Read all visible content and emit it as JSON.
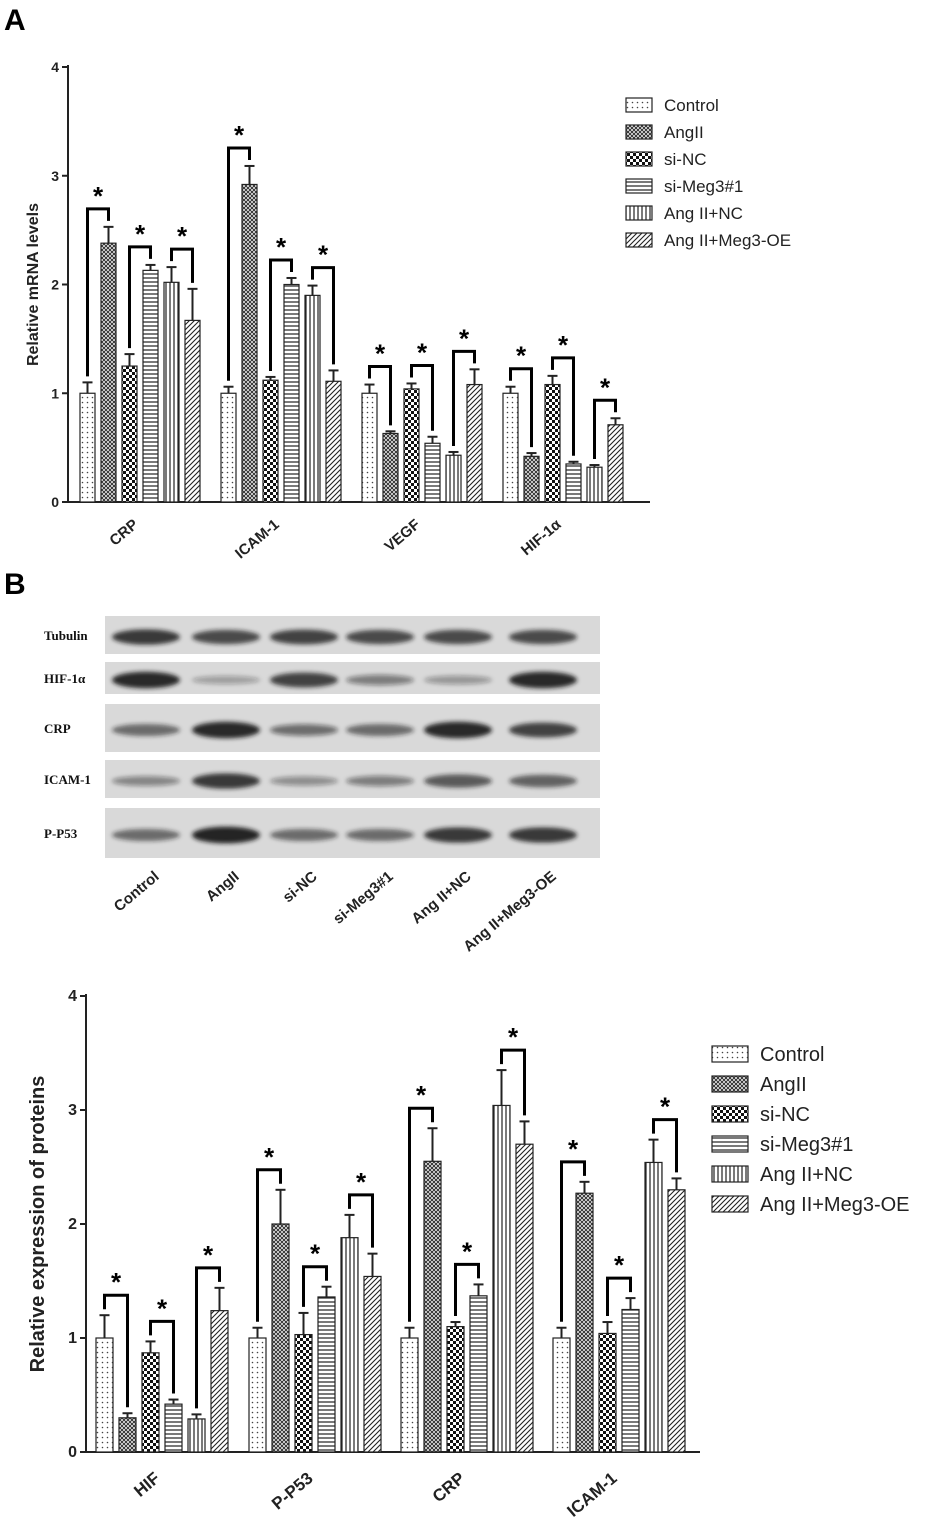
{
  "panel_a_letter": "A",
  "panel_b_letter": "B",
  "colors": {
    "ink": "#222222",
    "blot_bg": "#d9d9d9",
    "band": "#1a1a1a"
  },
  "legend": [
    "Control",
    "AngII",
    "si-NC",
    "si-Meg3#1",
    "Ang II+NC",
    "Ang II+Meg3-OE"
  ],
  "pattern_names": [
    "dots",
    "crosshatch",
    "checker",
    "h-lines",
    "v-lines",
    "diagonal"
  ],
  "significance_symbol": "*",
  "blot": {
    "rows": [
      {
        "label": "Tubulin",
        "intensity": [
          0.85,
          0.75,
          0.8,
          0.75,
          0.75,
          0.75
        ]
      },
      {
        "label": "HIF-1α",
        "intensity": [
          0.95,
          0.2,
          0.8,
          0.4,
          0.25,
          0.95
        ]
      },
      {
        "label": "CRP",
        "intensity": [
          0.55,
          0.95,
          0.5,
          0.55,
          0.95,
          0.8
        ]
      },
      {
        "label": "ICAM-1",
        "intensity": [
          0.35,
          0.85,
          0.3,
          0.4,
          0.65,
          0.6
        ]
      },
      {
        "label": "P-P53",
        "intensity": [
          0.55,
          0.98,
          0.55,
          0.55,
          0.85,
          0.85
        ]
      }
    ],
    "lanes": [
      "Control",
      "AngII",
      "si-NC",
      "si-Meg3#1",
      "Ang II+NC",
      "Ang II+Meg3-OE"
    ]
  },
  "chart_data": [
    {
      "type": "bar",
      "title": "",
      "xlabel": "",
      "ylabel": "Relative mRNA levels",
      "ylim": [
        0,
        4
      ],
      "yticks": [
        0,
        1,
        2,
        3,
        4
      ],
      "categories": [
        "CRP",
        "ICAM-1",
        "VEGF",
        "HIF-1α"
      ],
      "legend_position": "top-right",
      "series": [
        {
          "name": "Control",
          "values": [
            1.0,
            1.0,
            1.0,
            1.0
          ],
          "errors": [
            0.1,
            0.06,
            0.08,
            0.06
          ]
        },
        {
          "name": "AngII",
          "values": [
            2.38,
            2.92,
            0.63,
            0.42
          ],
          "errors": [
            0.15,
            0.17,
            0.02,
            0.03
          ]
        },
        {
          "name": "si-NC",
          "values": [
            1.25,
            1.12,
            1.04,
            1.08
          ],
          "errors": [
            0.11,
            0.03,
            0.05,
            0.08
          ]
        },
        {
          "name": "si-Meg3#1",
          "values": [
            2.13,
            2.0,
            0.54,
            0.35
          ],
          "errors": [
            0.05,
            0.06,
            0.06,
            0.02
          ]
        },
        {
          "name": "Ang II+NC",
          "values": [
            2.02,
            1.9,
            0.43,
            0.32
          ],
          "errors": [
            0.14,
            0.09,
            0.03,
            0.02
          ]
        },
        {
          "name": "Ang II+Meg3-OE",
          "values": [
            1.67,
            1.11,
            1.08,
            0.71
          ],
          "errors": [
            0.29,
            0.1,
            0.14,
            0.06
          ]
        }
      ],
      "significance": [
        {
          "category": 0,
          "from": 0,
          "to": 1
        },
        {
          "category": 0,
          "from": 2,
          "to": 3
        },
        {
          "category": 0,
          "from": 4,
          "to": 5
        },
        {
          "category": 1,
          "from": 0,
          "to": 1
        },
        {
          "category": 1,
          "from": 2,
          "to": 3
        },
        {
          "category": 1,
          "from": 4,
          "to": 5
        },
        {
          "category": 2,
          "from": 0,
          "to": 1
        },
        {
          "category": 2,
          "from": 2,
          "to": 3
        },
        {
          "category": 2,
          "from": 4,
          "to": 5
        },
        {
          "category": 3,
          "from": 0,
          "to": 1
        },
        {
          "category": 3,
          "from": 2,
          "to": 3
        },
        {
          "category": 3,
          "from": 4,
          "to": 5
        }
      ]
    },
    {
      "type": "bar",
      "title": "",
      "xlabel": "",
      "ylabel": "Relative expression of proteins",
      "ylim": [
        0,
        4
      ],
      "yticks": [
        0,
        1,
        2,
        3,
        4
      ],
      "categories": [
        "HIF",
        "P-P53",
        "CRP",
        "ICAM-1"
      ],
      "legend_position": "top-right",
      "series": [
        {
          "name": "Control",
          "values": [
            1.0,
            1.0,
            1.0,
            1.0
          ],
          "errors": [
            0.2,
            0.09,
            0.09,
            0.09
          ]
        },
        {
          "name": "AngII",
          "values": [
            0.3,
            2.0,
            2.55,
            2.27
          ],
          "errors": [
            0.04,
            0.3,
            0.29,
            0.1
          ]
        },
        {
          "name": "si-NC",
          "values": [
            0.87,
            1.03,
            1.1,
            1.04
          ],
          "errors": [
            0.1,
            0.19,
            0.04,
            0.1
          ]
        },
        {
          "name": "si-Meg3#1",
          "values": [
            0.42,
            1.36,
            1.37,
            1.25
          ],
          "errors": [
            0.04,
            0.09,
            0.1,
            0.1
          ]
        },
        {
          "name": "Ang II+NC",
          "values": [
            0.29,
            1.88,
            3.04,
            2.54
          ],
          "errors": [
            0.04,
            0.2,
            0.31,
            0.2
          ]
        },
        {
          "name": "Ang II+Meg3-OE",
          "values": [
            1.24,
            1.54,
            2.7,
            2.3
          ],
          "errors": [
            0.2,
            0.2,
            0.2,
            0.1
          ]
        }
      ],
      "significance": [
        {
          "category": 0,
          "from": 0,
          "to": 1
        },
        {
          "category": 0,
          "from": 2,
          "to": 3
        },
        {
          "category": 0,
          "from": 4,
          "to": 5
        },
        {
          "category": 1,
          "from": 0,
          "to": 1
        },
        {
          "category": 1,
          "from": 2,
          "to": 3
        },
        {
          "category": 1,
          "from": 4,
          "to": 5
        },
        {
          "category": 2,
          "from": 0,
          "to": 1
        },
        {
          "category": 2,
          "from": 2,
          "to": 3
        },
        {
          "category": 2,
          "from": 4,
          "to": 5
        },
        {
          "category": 3,
          "from": 0,
          "to": 1
        },
        {
          "category": 3,
          "from": 2,
          "to": 3
        },
        {
          "category": 3,
          "from": 4,
          "to": 5
        }
      ]
    }
  ]
}
